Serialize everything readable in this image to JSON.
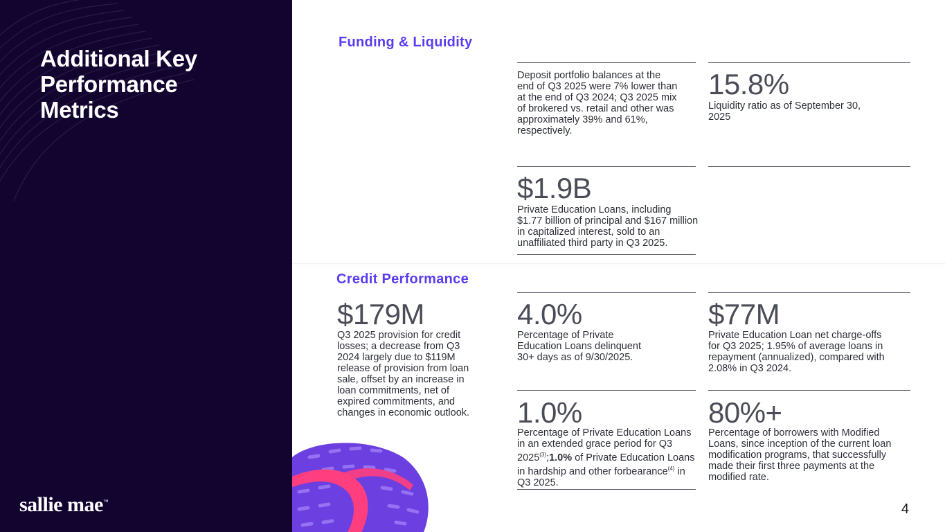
{
  "title": "Additional Key Performance Metrics",
  "logo": {
    "text": "sallie mae",
    "tm": "™"
  },
  "page_number": "4",
  "colors": {
    "sidebar_bg": "#12042f",
    "accent": "#5a3cf0",
    "pink": "#ff3e7f",
    "purple": "#7a4cf0"
  },
  "funding": {
    "heading": "Funding & Liquidity",
    "deposit": {
      "desc": "Deposit portfolio balances at the end of Q3 2025 were 7% lower than at the end of Q3 2024; Q3 2025 mix of brokered vs. retail and other was approximately 39% and 61%, respectively."
    },
    "liquidity": {
      "value": "15.8%",
      "desc": "Liquidity ratio as of September 30, 2025"
    },
    "loan_sale": {
      "value": "$1.9B",
      "desc": "Private Education Loans, including $1.77 billion of principal and $167 million in capitalized interest, sold to an unaffiliated third party in Q3 2025."
    }
  },
  "credit": {
    "heading": "Credit Performance",
    "provision": {
      "value": "$179M",
      "desc": "Q3 2025 provision for credit losses; a decrease from Q3 2024 largely due to $119M release of provision from loan sale, offset by an increase in loan commitments, net of expired commitments, and changes in economic outlook."
    },
    "delinquent": {
      "value": "4.0%",
      "desc": "Percentage of Private Education Loans delinquent 30+ days as of 9/30/2025."
    },
    "chargeoffs": {
      "value": "$77M",
      "desc": "Private Education Loan net charge-offs for Q3 2025; 1.95% of average loans in repayment (annualized), compared with 2.08% in Q3 2024."
    },
    "grace": {
      "value": "1.0%",
      "desc_a": "Percentage of Private Education Loans in an extended grace period for Q3 2025",
      "sup_a": "(3)",
      "sep": ";",
      "desc_bold": "1.0%",
      "desc_b": " of Private Education Loans in hardship and other forbearance",
      "sup_b": "(4)",
      "desc_c": " in Q3 2025."
    },
    "modified": {
      "value": "80%+",
      "desc": "Percentage of borrowers with Modified Loans, since inception of the current loan modification programs, that successfully made their first three payments at the modified rate."
    }
  }
}
